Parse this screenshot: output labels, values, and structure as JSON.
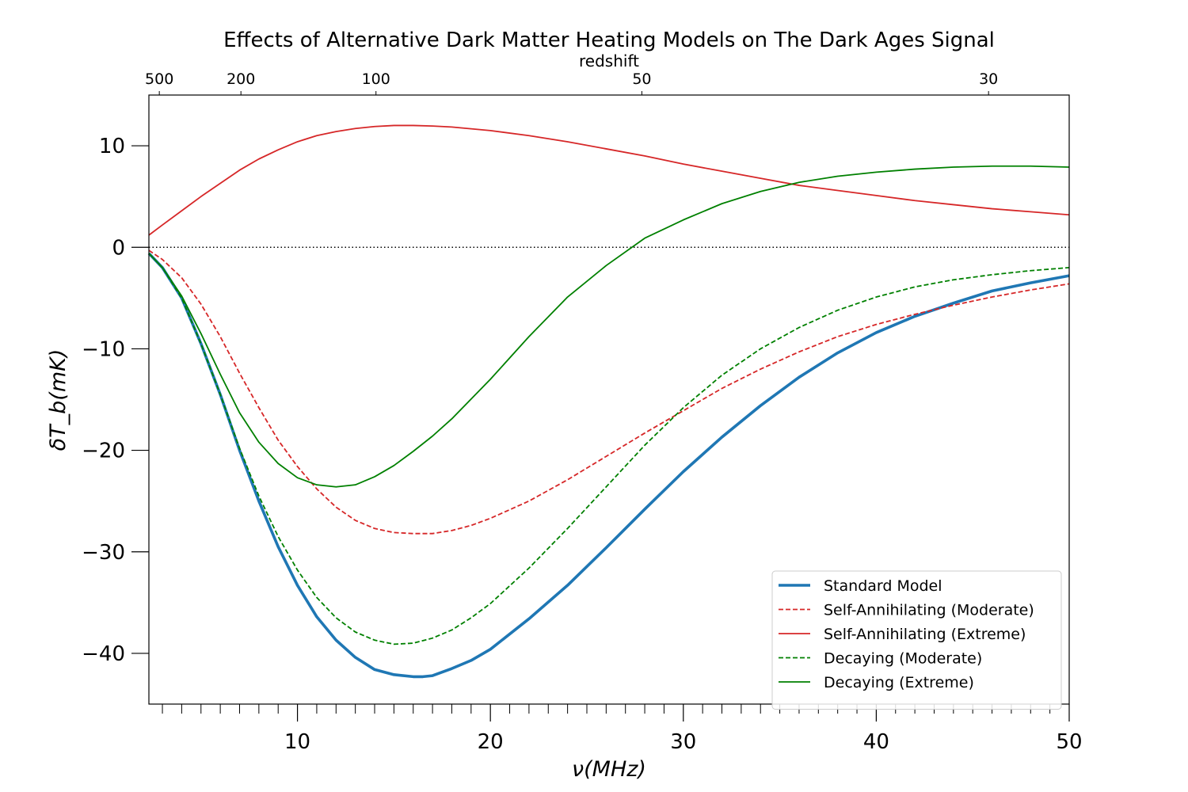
{
  "chart_data": {
    "type": "line",
    "title": "Effects of Alternative Dark Matter Heating Models on The Dark Ages Signal",
    "xlabel": "ν(MHz)",
    "ylabel": "δT_b(mK)",
    "top_axis_label": "redshift",
    "xlim": [
      2.3,
      50
    ],
    "ylim": [
      -45,
      15
    ],
    "x_ticks": [
      10,
      20,
      30,
      40,
      50
    ],
    "x_tick_labels": [
      "10",
      "20",
      "30",
      "40",
      "50"
    ],
    "y_ticks": [
      10,
      0,
      -10,
      -20,
      -30,
      -40
    ],
    "y_tick_labels": [
      "10",
      "0",
      "−10",
      "−20",
      "−30",
      "−40"
    ],
    "top_ticks": [
      {
        "label": "500",
        "x": 2.84
      },
      {
        "label": "200",
        "x": 7.07
      },
      {
        "label": "100",
        "x": 14.07
      },
      {
        "label": "50",
        "x": 27.85
      },
      {
        "label": "30",
        "x": 45.82
      }
    ],
    "zero_line": true,
    "legend_position": "lower-right",
    "series": [
      {
        "name": "Standard Model",
        "color": "#1f77b4",
        "style": "solid",
        "width": "thick",
        "x": [
          2.3,
          3,
          4,
          5,
          6,
          7,
          8,
          9,
          10,
          11,
          12,
          13,
          14,
          15,
          16,
          16.5,
          17,
          18,
          19,
          20,
          22,
          24,
          26,
          28,
          30,
          32,
          34,
          36,
          38,
          40,
          42,
          44,
          46,
          48,
          50
        ],
        "y": [
          -0.6,
          -2,
          -5,
          -9.5,
          -14.5,
          -20,
          -25,
          -29.5,
          -33.3,
          -36.4,
          -38.7,
          -40.4,
          -41.6,
          -42.1,
          -42.3,
          -42.3,
          -42.2,
          -41.5,
          -40.7,
          -39.6,
          -36.6,
          -33.3,
          -29.6,
          -25.8,
          -22.1,
          -18.7,
          -15.6,
          -12.8,
          -10.4,
          -8.4,
          -6.8,
          -5.5,
          -4.3,
          -3.5,
          -2.8
        ]
      },
      {
        "name": "Self-Annihilating (Moderate)",
        "color": "#d62728",
        "style": "dashed",
        "width": "normal",
        "x": [
          2.3,
          3,
          4,
          5,
          6,
          7,
          8,
          9,
          10,
          11,
          12,
          13,
          14,
          15,
          16,
          17,
          18,
          19,
          20,
          22,
          24,
          26,
          28,
          30,
          32,
          34,
          36,
          38,
          40,
          42,
          44,
          46,
          48,
          50
        ],
        "y": [
          -0.3,
          -1.2,
          -3,
          -5.6,
          -8.8,
          -12.4,
          -15.8,
          -19,
          -21.6,
          -23.8,
          -25.6,
          -26.9,
          -27.7,
          -28.1,
          -28.2,
          -28.2,
          -27.9,
          -27.4,
          -26.7,
          -25,
          -22.9,
          -20.6,
          -18.3,
          -16.1,
          -13.9,
          -12,
          -10.3,
          -8.8,
          -7.6,
          -6.6,
          -5.7,
          -4.9,
          -4.2,
          -3.6
        ]
      },
      {
        "name": "Self-Annihilating (Extreme)",
        "color": "#d62728",
        "style": "solid",
        "width": "normal",
        "x": [
          2.3,
          3,
          4,
          5,
          6,
          7,
          8,
          9,
          10,
          11,
          12,
          13,
          14,
          15,
          16,
          17,
          18,
          20,
          22,
          24,
          26,
          28,
          30,
          32,
          34,
          36,
          38,
          40,
          42,
          44,
          46,
          48,
          50
        ],
        "y": [
          1.2,
          2.2,
          3.6,
          5,
          6.3,
          7.6,
          8.7,
          9.6,
          10.4,
          11,
          11.4,
          11.7,
          11.9,
          12,
          12,
          11.95,
          11.85,
          11.5,
          11,
          10.4,
          9.7,
          9,
          8.2,
          7.5,
          6.8,
          6.1,
          5.6,
          5.1,
          4.6,
          4.2,
          3.8,
          3.5,
          3.2
        ]
      },
      {
        "name": "Decaying (Moderate)",
        "color": "#008000",
        "style": "dashed",
        "width": "normal",
        "x": [
          2.3,
          3,
          4,
          5,
          6,
          7,
          8,
          9,
          10,
          11,
          12,
          13,
          14,
          15,
          16,
          17,
          18,
          19,
          20,
          22,
          24,
          26,
          28,
          30,
          32,
          34,
          36,
          38,
          40,
          42,
          44,
          46,
          48,
          50
        ],
        "y": [
          -0.6,
          -2,
          -5,
          -9.5,
          -14.5,
          -19.8,
          -24.5,
          -28.5,
          -31.8,
          -34.5,
          -36.5,
          -37.9,
          -38.7,
          -39.1,
          -39,
          -38.5,
          -37.7,
          -36.5,
          -35.1,
          -31.6,
          -27.7,
          -23.6,
          -19.5,
          -15.8,
          -12.6,
          -10,
          -7.9,
          -6.2,
          -4.9,
          -3.9,
          -3.2,
          -2.7,
          -2.3,
          -2
        ]
      },
      {
        "name": "Decaying (Extreme)",
        "color": "#008000",
        "style": "solid",
        "width": "normal",
        "x": [
          2.3,
          3,
          4,
          5,
          6,
          7,
          8,
          9,
          10,
          11,
          12,
          13,
          14,
          15,
          16,
          17,
          18,
          20,
          22,
          24,
          26,
          28,
          30,
          32,
          34,
          36,
          38,
          40,
          42,
          44,
          46,
          48,
          50
        ],
        "y": [
          -0.6,
          -2,
          -4.8,
          -8.5,
          -12.5,
          -16.3,
          -19.2,
          -21.3,
          -22.7,
          -23.4,
          -23.6,
          -23.4,
          -22.6,
          -21.5,
          -20.1,
          -18.6,
          -16.9,
          -13,
          -8.8,
          -4.9,
          -1.8,
          0.9,
          2.7,
          4.3,
          5.5,
          6.4,
          7,
          7.4,
          7.7,
          7.9,
          8,
          8,
          7.9
        ]
      }
    ]
  }
}
